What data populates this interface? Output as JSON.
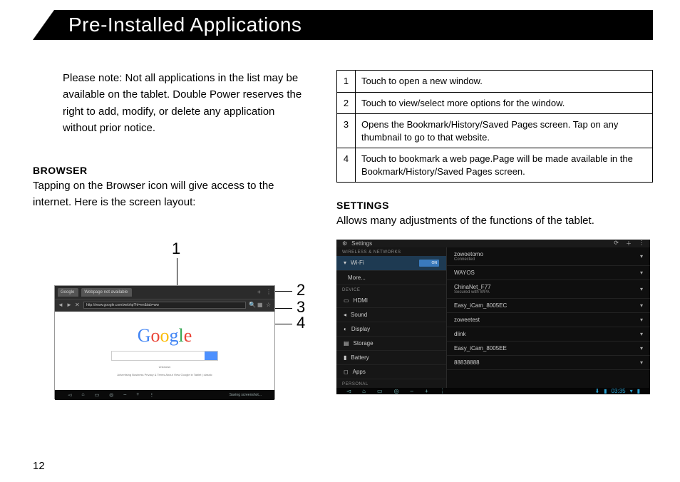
{
  "header": {
    "title": "Pre-Installed Applications"
  },
  "note": "Please note: Not all applications in the list may be available on the tablet. Double Power reserves the right to add, modify, or delete any application without prior notice.",
  "browser": {
    "heading": "BROWSER",
    "body": "Tapping on the Browser icon will give  access to the internet. Here is the screen layout:",
    "callouts": {
      "c1": "1",
      "c2": "2",
      "c3": "3",
      "c4": "4"
    },
    "url": "http://www.google.com/webhp?hl=en&tab=ww",
    "tab1": "Google",
    "tab2": "Webpage not available",
    "footer_small": "Unknown",
    "footer_links": "Advertising    Business    Privacy & Terms    About    View Google in Tablet | classic",
    "saving": "Saving screenshot..."
  },
  "ref_table": [
    {
      "n": "1",
      "t": "Touch to open a new window."
    },
    {
      "n": "2",
      "t": "Touch to view/select more options for the window."
    },
    {
      "n": "3",
      "t": "Opens the Bookmark/History/Saved Pages screen. Tap on any thumbnail to go to that website."
    },
    {
      "n": "4",
      "t": "Touch to bookmark a web page.Page will be made available in the Bookmark/History/Saved Pages screen."
    }
  ],
  "settings": {
    "heading": "SETTINGS",
    "body": "Allows  many  adjustments of the functions of the tablet.",
    "title": "Settings",
    "cat1": "WIRELESS & NETWORKS",
    "side": [
      {
        "icon": "▾",
        "label": "Wi-Fi",
        "toggle": "ON",
        "sel": true
      },
      {
        "icon": "",
        "label": "More..."
      },
      {
        "icon": "",
        "label": ""
      },
      {
        "icon": "▭",
        "label": "HDMI"
      },
      {
        "icon": "◂",
        "label": "Sound"
      },
      {
        "icon": "◐",
        "label": "Display"
      },
      {
        "icon": "▤",
        "label": "Storage"
      },
      {
        "icon": "▮",
        "label": "Battery"
      },
      {
        "icon": "◻",
        "label": "Apps"
      }
    ],
    "cat2": "PERSONAL",
    "cat_device": "DEVICE",
    "networks": [
      {
        "name": "zowoetomo",
        "sub": "Connected"
      },
      {
        "name": "WAYOS",
        "sub": ""
      },
      {
        "name": "ChinaNet_F77",
        "sub": "Secured with WPA"
      },
      {
        "name": "Easy_iCam_8005EC",
        "sub": ""
      },
      {
        "name": "zoweetest",
        "sub": ""
      },
      {
        "name": "dlink",
        "sub": ""
      },
      {
        "name": "Easy_iCam_8005EE",
        "sub": ""
      },
      {
        "name": "88838888",
        "sub": ""
      }
    ],
    "clock": "03:35"
  },
  "page_number": "12"
}
